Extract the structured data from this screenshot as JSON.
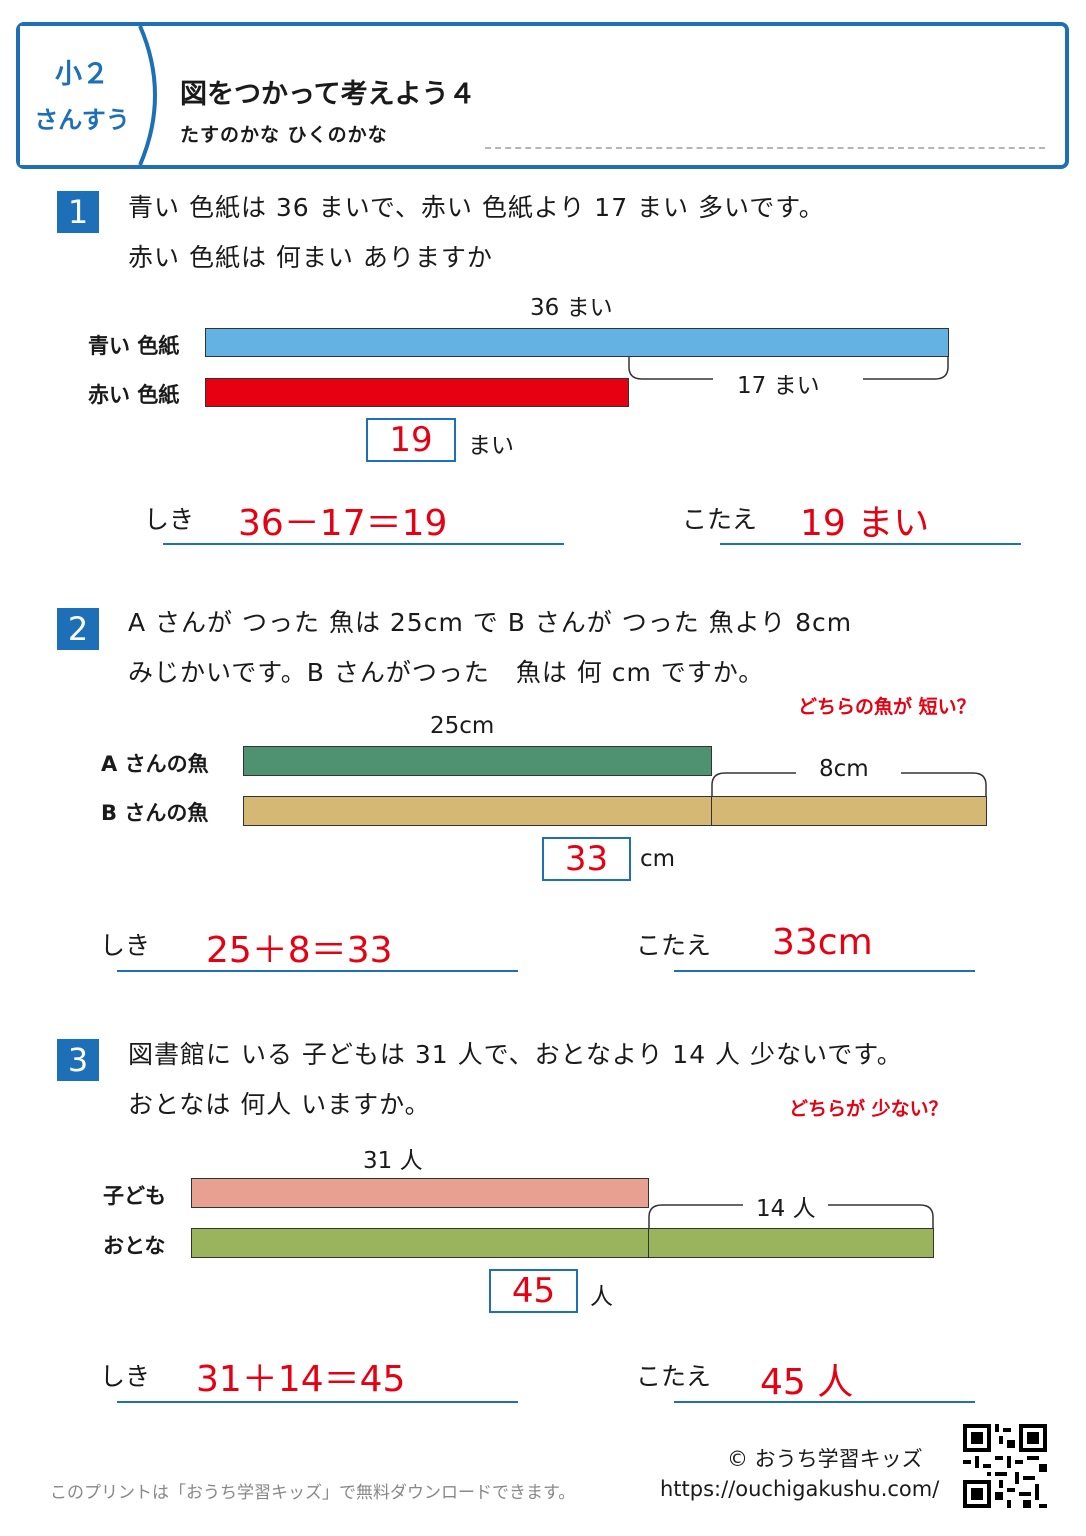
{
  "header": {
    "grade": "小２",
    "subject": "さんすう",
    "title": "図をつかって考えよう４",
    "subtitle": "たすのかな ひくのかな"
  },
  "problems": [
    {
      "number": "1",
      "text_line1": "青い 色紙は 36 まいで、赤い 色紙より 17 まい 多いです。",
      "text_line2": "赤い 色紙は 何まい ありますか",
      "hint": "",
      "top_total": "36 まい",
      "row1_label": "青い 色紙",
      "row2_label": "赤い 色紙",
      "diff_label": "17 まい",
      "answer_box": "19",
      "answer_unit": "まい",
      "shiki_label": "しき",
      "shiki": "36－17＝19",
      "kotae_label": "こたえ",
      "kotae": "19 まい"
    },
    {
      "number": "2",
      "text_line1": "A さんが つった 魚は 25cm で B さんが つった 魚より 8cm",
      "text_line2": "みじかいです。B さんがつった　魚は 何 cm ですか。",
      "hint": "どちらの魚が 短い？",
      "top_total": "25cm",
      "row1_label": "A さんの魚",
      "row2_label": "B さんの魚",
      "diff_label": "8cm",
      "answer_box": "33",
      "answer_unit": "cm",
      "shiki_label": "しき",
      "shiki": "25＋8＝33",
      "kotae_label": "こたえ",
      "kotae": "33cm"
    },
    {
      "number": "3",
      "text_line1": "図書館に いる 子どもは 31 人で、おとなより 14 人 少ないです。",
      "text_line2": "おとなは 何人 いますか。",
      "hint": "どちらが 少ない？",
      "top_total": "31 人",
      "row1_label": "子ども",
      "row2_label": "おとな",
      "diff_label": "14 人",
      "answer_box": "45",
      "answer_unit": "人",
      "shiki_label": "しき",
      "shiki": "31＋14＝45",
      "kotae_label": "こたえ",
      "kotae": "45 人"
    }
  ],
  "colors": {
    "accent": "#1d6fb8",
    "answer_red": "#e60012",
    "bar_blue": "#64b1e4",
    "bar_red": "#e60012",
    "bar_green_dark": "#4f9271",
    "bar_tan": "#d4b873",
    "bar_pink": "#e8a091",
    "bar_olive": "#9ab35d"
  },
  "footer": {
    "note": "このプリントは「おうち学習キッズ」で無料ダウンロードできます。",
    "copyright": "© おうち学習キッズ",
    "url": "https://ouchigakushu.com/",
    "qr_icon": "qr-code-icon"
  }
}
